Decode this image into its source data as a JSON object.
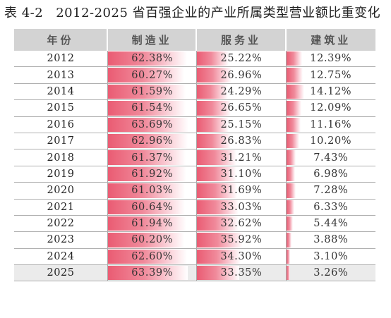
{
  "caption": {
    "number": "表 4-2",
    "title": "2012-2025 省百强企业的产业所属类型营业额比重变化"
  },
  "chart_data": {
    "type": "table",
    "headers": [
      "年份",
      "制造业",
      "服务业",
      "建筑业"
    ],
    "bar_scale_max": 70,
    "rows": [
      {
        "year": "2012",
        "values": [
          62.38,
          25.22,
          12.39
        ],
        "labels": [
          "62.38%",
          "25.22%",
          "12.39%"
        ]
      },
      {
        "year": "2013",
        "values": [
          60.27,
          26.96,
          12.75
        ],
        "labels": [
          "60.27%",
          "26.96%",
          "12.75%"
        ]
      },
      {
        "year": "2014",
        "values": [
          61.59,
          24.29,
          14.12
        ],
        "labels": [
          "61.59%",
          "24.29%",
          "14.12%"
        ]
      },
      {
        "year": "2015",
        "values": [
          61.54,
          26.65,
          12.09
        ],
        "labels": [
          "61.54%",
          "26.65%",
          "12.09%"
        ]
      },
      {
        "year": "2016",
        "values": [
          63.69,
          25.15,
          11.16
        ],
        "labels": [
          "63.69%",
          "25.15%",
          "11.16%"
        ]
      },
      {
        "year": "2017",
        "values": [
          62.96,
          26.83,
          10.2
        ],
        "labels": [
          "62.96%",
          "26.83%",
          "10.20%"
        ]
      },
      {
        "year": "2018",
        "values": [
          61.37,
          31.21,
          7.43
        ],
        "labels": [
          "61.37%",
          "31.21%",
          "7.43%"
        ]
      },
      {
        "year": "2019",
        "values": [
          61.92,
          31.1,
          6.98
        ],
        "labels": [
          "61.92%",
          "31.10%",
          "6.98%"
        ]
      },
      {
        "year": "2020",
        "values": [
          61.03,
          31.69,
          7.28
        ],
        "labels": [
          "61.03%",
          "31.69%",
          "7.28%"
        ]
      },
      {
        "year": "2021",
        "values": [
          60.64,
          33.03,
          6.33
        ],
        "labels": [
          "60.64%",
          "33.03%",
          "6.33%"
        ]
      },
      {
        "year": "2022",
        "values": [
          61.94,
          32.62,
          5.44
        ],
        "labels": [
          "61.94%",
          "32.62%",
          "5.44%"
        ]
      },
      {
        "year": "2023",
        "values": [
          60.2,
          35.92,
          3.88
        ],
        "labels": [
          "60.20%",
          "35.92%",
          "3.88%"
        ]
      },
      {
        "year": "2024",
        "values": [
          62.6,
          34.3,
          3.1
        ],
        "labels": [
          "62.60%",
          "34.30%",
          "3.10%"
        ]
      },
      {
        "year": "2025",
        "values": [
          63.39,
          33.35,
          3.26
        ],
        "labels": [
          "63.39%",
          "33.35%",
          "3.26%"
        ]
      }
    ]
  },
  "colors": {
    "bar_start": "#ea5c73",
    "bar_end": "#ffffff",
    "header_bg": "#d3d3d3",
    "last_row_bg": "#ebebeb"
  }
}
